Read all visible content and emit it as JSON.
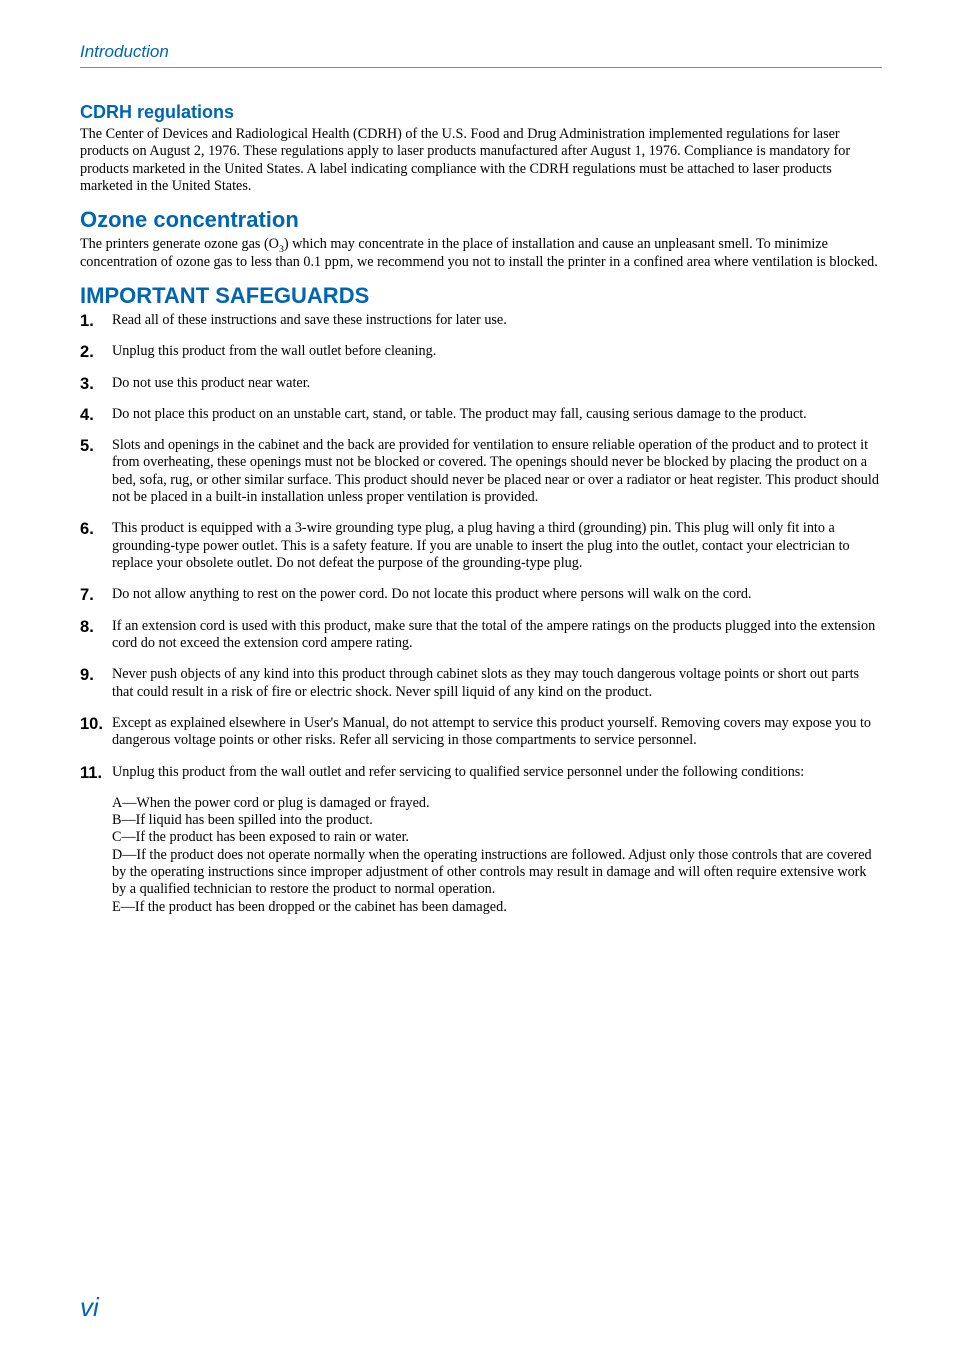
{
  "header": {
    "title": "Introduction"
  },
  "sections": {
    "cdrh": {
      "heading": "CDRH regulations",
      "body": "The Center of Devices and Radiological Health (CDRH) of the U.S. Food and Drug Administration implemented regulations for laser products on August 2, 1976. These regulations apply to laser products manufactured after August 1, 1976. Compliance is mandatory for products marketed in the United States. A label indicating compliance with the CDRH regulations must be attached to laser products marketed in the United States."
    },
    "ozone": {
      "heading": "Ozone concentration",
      "body_pre": "The printers generate ozone gas (O",
      "body_sub": "3",
      "body_post": ") which may concentrate in the place of installation and cause an unpleasant smell. To minimize concentration of ozone gas to less than 0.1 ppm, we recommend you not to install the printer in a confined area where ventilation is blocked."
    },
    "safeguards": {
      "heading": "IMPORTANT SAFEGUARDS",
      "items": {
        "1": "Read all of these instructions and save these instructions for later use.",
        "2": "Unplug this product from the wall outlet before cleaning.",
        "3": "Do not use this product near water.",
        "4": "Do not place this product on an unstable cart, stand, or table. The product may fall, causing serious damage to the product.",
        "5": "Slots and openings in the cabinet and the back are provided for ventilation to ensure reliable operation of the product and to protect it from overheating, these openings must not be blocked or covered. The openings should never be blocked by placing the product on a bed, sofa, rug, or other similar surface. This product should never be placed near or over a radiator or heat register. This product should not be placed in a built-in installation unless proper ventilation is provided.",
        "6": "This product is equipped with a 3-wire grounding type plug, a plug having a third (grounding) pin. This plug will only fit into a grounding-type power outlet. This is a safety feature. If you are unable to insert the plug into the outlet, contact your electrician to replace your obsolete outlet. Do not defeat the purpose of the grounding-type plug.",
        "7": "Do not allow anything to rest on the power cord. Do not locate this product where persons will walk on the cord.",
        "8": "If an extension cord is used with this product, make sure that the total of the ampere ratings on the products plugged into the extension cord do not exceed the extension cord ampere rating.",
        "9": "Never push objects of any kind into this product through cabinet slots as they may touch dangerous voltage points or short out parts that could result in a risk of fire or electric shock. Never spill liquid of any kind on the product.",
        "10": "Except as explained elsewhere in User's Manual, do not attempt to service this product yourself. Removing covers may expose you to dangerous voltage points or other risks. Refer all servicing in those compartments to service personnel.",
        "11": "Unplug this product from the wall outlet and refer servicing to qualified service personnel under the following conditions:"
      },
      "conditions": {
        "a": "A—When the power cord or plug is damaged or frayed.",
        "b": "B—If liquid has been spilled into the product.",
        "c": "C—If the product has been exposed to rain or water.",
        "d": "D—If the product does not operate normally when the operating instructions are followed. Adjust only those controls that are covered by the operating instructions since improper adjustment of other controls may result in damage and will often require extensive work by a qualified technician to restore the product to normal operation.",
        "e": "E—If the product has been dropped or the cabinet has been damaged."
      }
    }
  },
  "pageNumber": "vi"
}
